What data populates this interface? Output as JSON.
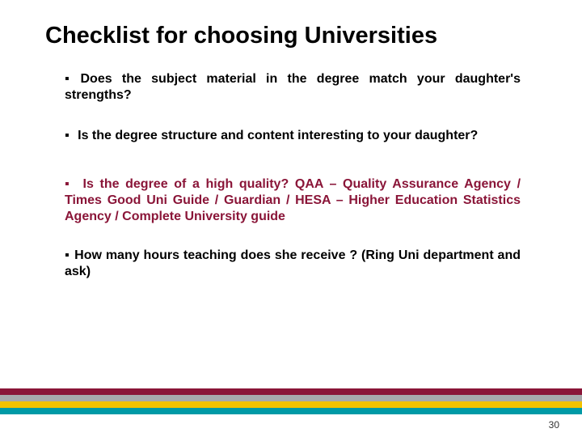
{
  "title": {
    "text": "Checklist for choosing Universities",
    "fontsize": 29,
    "color": "#000000"
  },
  "bullet_marker": "▪",
  "items": [
    {
      "text": "Does the subject material in the degree match your daughter's strengths?",
      "color": "#000000"
    },
    {
      "text": " Is the degree structure and content interesting to your daughter?",
      "color": "#000000"
    },
    {
      "text": " Is the degree of a high quality? QAA – Quality Assurance Agency / Times Good Uni Guide / Guardian / HESA – Higher Education Statistics Agency / Complete University guide",
      "color": "#8a1538"
    },
    {
      "text": "How many hours teaching does she receive ? (Ring Uni department and ask)",
      "color": "#000000"
    }
  ],
  "body_fontsize": 16,
  "stripes": {
    "colors": [
      "#8a1538",
      "#a7a9ac",
      "#f2c200",
      "#009aa6"
    ],
    "height": 8
  },
  "page_number": "30",
  "background_color": "#ffffff"
}
